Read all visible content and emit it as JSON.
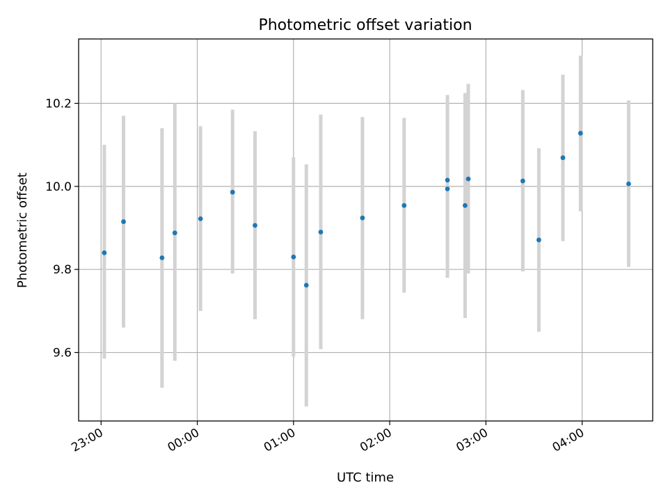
{
  "chart_data": {
    "type": "scatter",
    "title": "Photometric offset variation",
    "xlabel": "UTC time",
    "ylabel": "Photometric offset",
    "grid": true,
    "xlim": [
      "22:46",
      "04:44"
    ],
    "ylim": [
      9.435,
      10.355
    ],
    "xticks": [
      "23:00",
      "00:00",
      "01:00",
      "02:00",
      "03:00",
      "04:00"
    ],
    "yticks": [
      9.6,
      9.8,
      10.0,
      10.2
    ],
    "ytick_labels": [
      "9.6",
      "9.8",
      "10.0",
      "10.2"
    ],
    "colors": {
      "marker": "#1f77b4",
      "errorbar": "#d3d3d3"
    },
    "points": [
      {
        "x": "23:02",
        "y": 9.84,
        "ylow": 9.585,
        "yhigh": 10.1
      },
      {
        "x": "23:14",
        "y": 9.915,
        "ylow": 9.66,
        "yhigh": 10.17
      },
      {
        "x": "23:38",
        "y": 9.828,
        "ylow": 9.515,
        "yhigh": 10.14
      },
      {
        "x": "23:46",
        "y": 9.888,
        "ylow": 9.58,
        "yhigh": 10.2
      },
      {
        "x": "00:02",
        "y": 9.922,
        "ylow": 9.7,
        "yhigh": 10.145
      },
      {
        "x": "00:22",
        "y": 9.986,
        "ylow": 9.79,
        "yhigh": 10.185
      },
      {
        "x": "00:36",
        "y": 9.906,
        "ylow": 9.68,
        "yhigh": 10.133
      },
      {
        "x": "01:00",
        "y": 9.83,
        "ylow": 9.59,
        "yhigh": 10.07
      },
      {
        "x": "01:08",
        "y": 9.762,
        "ylow": 9.47,
        "yhigh": 10.053
      },
      {
        "x": "01:17",
        "y": 9.89,
        "ylow": 9.608,
        "yhigh": 10.173
      },
      {
        "x": "01:43",
        "y": 9.924,
        "ylow": 9.68,
        "yhigh": 10.167
      },
      {
        "x": "02:09",
        "y": 9.954,
        "ylow": 9.744,
        "yhigh": 10.165
      },
      {
        "x": "02:36",
        "y": 10.015,
        "ylow": 9.78,
        "yhigh": 10.22
      },
      {
        "x": "02:36",
        "y": 9.994,
        "ylow": 9.78,
        "yhigh": 10.22
      },
      {
        "x": "02:47",
        "y": 9.954,
        "ylow": 9.683,
        "yhigh": 10.225
      },
      {
        "x": "02:49",
        "y": 10.018,
        "ylow": 9.79,
        "yhigh": 10.247
      },
      {
        "x": "03:23",
        "y": 10.013,
        "ylow": 9.795,
        "yhigh": 10.232
      },
      {
        "x": "03:33",
        "y": 9.871,
        "ylow": 9.65,
        "yhigh": 10.092
      },
      {
        "x": "03:48",
        "y": 10.069,
        "ylow": 9.868,
        "yhigh": 10.269
      },
      {
        "x": "03:59",
        "y": 10.128,
        "ylow": 9.94,
        "yhigh": 10.315
      },
      {
        "x": "04:29",
        "y": 10.006,
        "ylow": 9.806,
        "yhigh": 10.207
      }
    ]
  }
}
